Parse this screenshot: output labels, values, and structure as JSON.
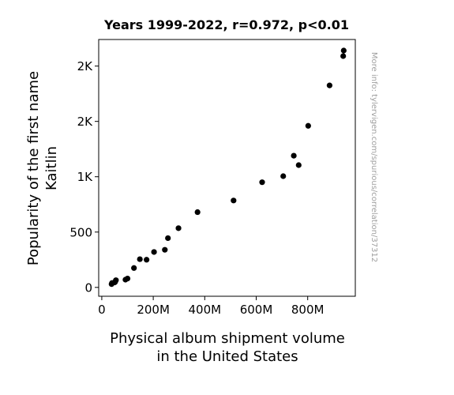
{
  "chart_data": {
    "type": "scatter",
    "title": "Years 1999-2022, r=0.972, p<0.01",
    "xlabel": [
      "Physical album shipment volume",
      "in the United States"
    ],
    "ylabel": [
      "Popularity of the first name",
      "Kaitlin"
    ],
    "watermark": "More info: tylervigen.com/spurious/correlation/37312",
    "xlim": [
      -12,
      985
    ],
    "ylim": [
      -80,
      2240
    ],
    "x_ticks": [
      0,
      200,
      400,
      600,
      800
    ],
    "x_tick_labels": [
      "0",
      "200M",
      "400M",
      "600M",
      "800M"
    ],
    "y_ticks": [
      0,
      500,
      1000,
      1500,
      2000
    ],
    "y_tick_labels": [
      "0",
      "500",
      "1K",
      "2K",
      "2K"
    ],
    "grid": false,
    "point_color": "#000000",
    "points": [
      {
        "x": 940,
        "y": 2140
      },
      {
        "x": 938,
        "y": 2090
      },
      {
        "x": 885,
        "y": 1825
      },
      {
        "x": 802,
        "y": 1460
      },
      {
        "x": 746,
        "y": 1190
      },
      {
        "x": 765,
        "y": 1105
      },
      {
        "x": 705,
        "y": 1005
      },
      {
        "x": 623,
        "y": 950
      },
      {
        "x": 512,
        "y": 785
      },
      {
        "x": 372,
        "y": 680
      },
      {
        "x": 298,
        "y": 535
      },
      {
        "x": 257,
        "y": 445
      },
      {
        "x": 245,
        "y": 340
      },
      {
        "x": 203,
        "y": 320
      },
      {
        "x": 174,
        "y": 250
      },
      {
        "x": 148,
        "y": 255
      },
      {
        "x": 125,
        "y": 175
      },
      {
        "x": 100,
        "y": 80
      },
      {
        "x": 92,
        "y": 70
      },
      {
        "x": 55,
        "y": 65
      },
      {
        "x": 52,
        "y": 50
      },
      {
        "x": 50,
        "y": 45
      },
      {
        "x": 40,
        "y": 40
      },
      {
        "x": 38,
        "y": 30
      }
    ]
  }
}
